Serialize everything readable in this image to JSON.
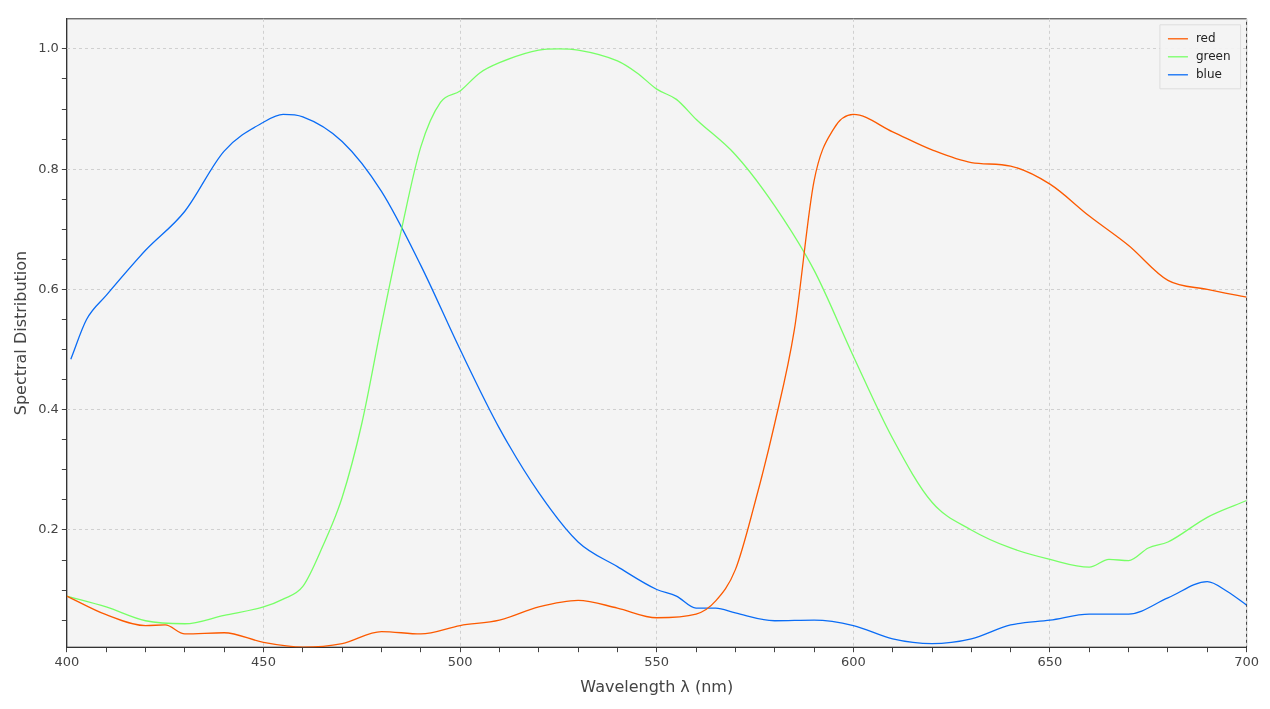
{
  "chart_data": {
    "type": "line",
    "xlabel": "Wavelength λ (nm)",
    "ylabel": "Spectral Distribution",
    "xlim": [
      400,
      700
    ],
    "xticks": [
      400,
      {
        "value": 410,
        "label": null
      },
      {
        "value": 420,
        "label": null
      },
      {
        "value": 430,
        "label": null
      },
      {
        "value": 440,
        "label": null
      },
      450,
      {
        "value": 460,
        "label": null
      },
      {
        "value": 470,
        "label": null
      },
      {
        "value": 480,
        "label": null
      },
      {
        "value": 490,
        "label": null
      },
      500,
      {
        "value": 510,
        "label": null
      },
      {
        "value": 520,
        "label": null
      },
      {
        "value": 530,
        "label": null
      },
      {
        "value": 540,
        "label": null
      },
      550,
      {
        "value": 560,
        "label": null
      },
      {
        "value": 570,
        "label": null
      },
      {
        "value": 580,
        "label": null
      },
      {
        "value": 590,
        "label": null
      },
      600,
      {
        "value": 610,
        "label": null
      },
      {
        "value": 620,
        "label": null
      },
      {
        "value": 630,
        "label": null
      },
      {
        "value": 640,
        "label": null
      },
      650,
      {
        "value": 660,
        "label": null
      },
      {
        "value": 670,
        "label": null
      },
      {
        "value": 680,
        "label": null
      },
      {
        "value": 690,
        "label": null
      },
      700
    ],
    "ylim": [
      0.005,
      1.05
    ],
    "yticks": [
      {
        "value": 0.05,
        "label": null
      },
      {
        "value": 0.1,
        "label": null
      },
      {
        "value": 0.15,
        "label": null
      },
      {
        "value": 0.2,
        "label": "0.2"
      },
      {
        "value": 0.25,
        "label": null
      },
      {
        "value": 0.3,
        "label": null
      },
      {
        "value": 0.35,
        "label": null
      },
      {
        "value": 0.4,
        "label": "0.4"
      },
      {
        "value": 0.45,
        "label": null
      },
      {
        "value": 0.5,
        "label": null
      },
      {
        "value": 0.55,
        "label": null
      },
      {
        "value": 0.6,
        "label": "0.6"
      },
      {
        "value": 0.65,
        "label": null
      },
      {
        "value": 0.7,
        "label": null
      },
      {
        "value": 0.75,
        "label": null
      },
      {
        "value": 0.8,
        "label": "0.8"
      },
      {
        "value": 0.85,
        "label": null
      },
      {
        "value": 0.9,
        "label": null
      },
      {
        "value": 0.95,
        "label": null
      },
      {
        "value": 1.0,
        "label": "1.0"
      }
    ],
    "grid": true,
    "legend": "top right",
    "marker": "none",
    "line_style": "solid",
    "series": [
      {
        "name": "red",
        "color": "#fc5a00",
        "x": [
          400,
          410,
          420,
          425,
          430,
          440,
          450,
          460,
          470,
          480,
          490,
          500,
          510,
          520,
          530,
          540,
          550,
          560,
          565,
          570,
          575,
          580,
          585,
          590,
          595,
          600,
          610,
          620,
          630,
          640,
          650,
          660,
          670,
          680,
          690,
          700
        ],
        "values": [
          0.09,
          0.059,
          0.041,
          0.042,
          0.027,
          0.029,
          0.013,
          0.005,
          0.011,
          0.031,
          0.027,
          0.041,
          0.05,
          0.072,
          0.083,
          0.07,
          0.054,
          0.06,
          0.082,
          0.134,
          0.246,
          0.377,
          0.533,
          0.78,
          0.867,
          0.891,
          0.862,
          0.832,
          0.811,
          0.805,
          0.775,
          0.722,
          0.673,
          0.615,
          0.6,
          0.587
        ]
      },
      {
        "name": "green",
        "color": "#77ff66",
        "x": [
          400,
          410,
          420,
          430,
          440,
          450,
          455,
          460,
          465,
          470,
          475,
          480,
          485,
          490,
          495,
          500,
          505,
          510,
          520,
          525,
          530,
          540,
          545,
          550,
          555,
          560,
          570,
          580,
          590,
          600,
          610,
          620,
          630,
          640,
          650,
          660,
          665,
          670,
          675,
          680,
          690,
          700
        ],
        "values": [
          0.09,
          0.072,
          0.049,
          0.044,
          0.058,
          0.072,
          0.085,
          0.106,
          0.172,
          0.254,
          0.377,
          0.541,
          0.697,
          0.837,
          0.911,
          0.93,
          0.96,
          0.977,
          0.998,
          1.0,
          0.998,
          0.98,
          0.96,
          0.933,
          0.916,
          0.883,
          0.824,
          0.739,
          0.632,
          0.489,
          0.352,
          0.246,
          0.2,
          0.17,
          0.151,
          0.138,
          0.151,
          0.149,
          0.17,
          0.18,
          0.221,
          0.249
        ]
      },
      {
        "name": "blue",
        "color": "#0a6cf5",
        "x": [
          401,
          405,
          410,
          420,
          430,
          440,
          450,
          455,
          460,
          470,
          480,
          490,
          500,
          510,
          520,
          530,
          540,
          550,
          555,
          560,
          565,
          570,
          580,
          590,
          600,
          610,
          620,
          630,
          640,
          650,
          660,
          670,
          680,
          690,
          695,
          700
        ],
        "values": [
          0.484,
          0.55,
          0.59,
          0.665,
          0.73,
          0.83,
          0.878,
          0.891,
          0.887,
          0.846,
          0.763,
          0.64,
          0.5,
          0.369,
          0.262,
          0.18,
          0.139,
          0.101,
          0.09,
          0.07,
          0.07,
          0.062,
          0.049,
          0.05,
          0.041,
          0.019,
          0.011,
          0.019,
          0.042,
          0.05,
          0.06,
          0.06,
          0.087,
          0.114,
          0.098,
          0.075
        ]
      }
    ]
  }
}
